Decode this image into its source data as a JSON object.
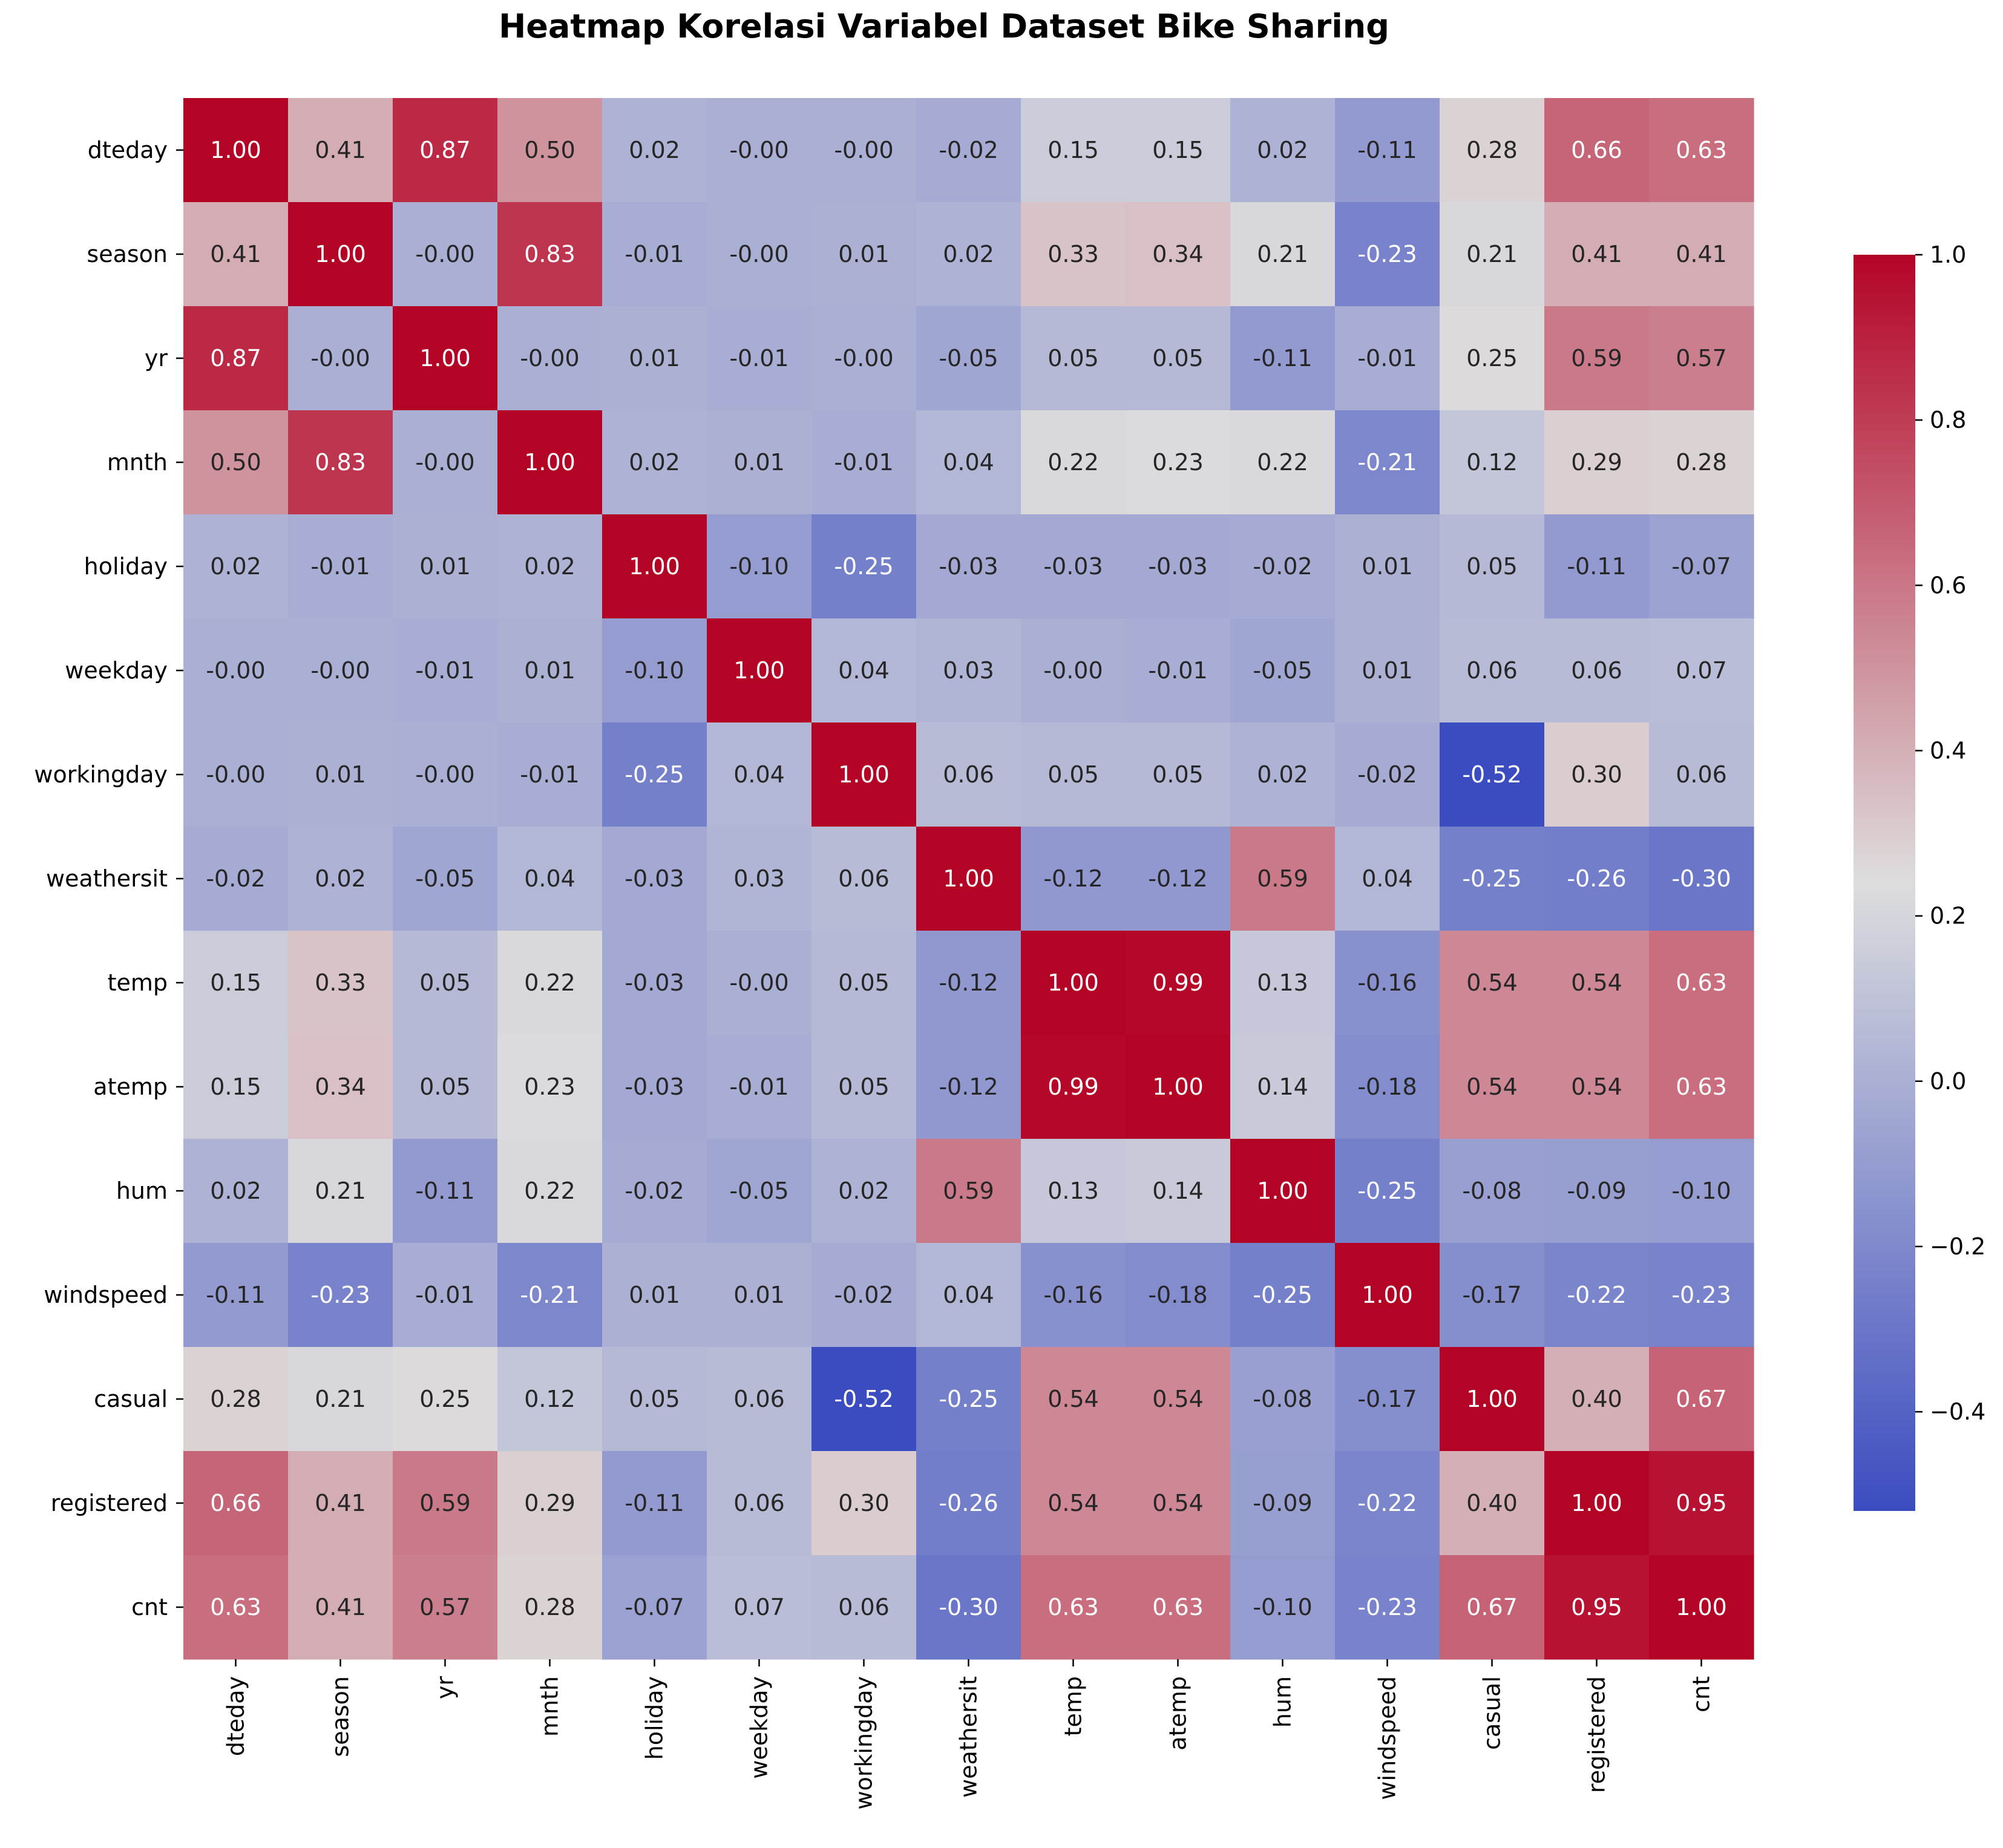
{
  "chart_data": {
    "type": "heatmap",
    "title": "Heatmap Korelasi Variabel Dataset Bike Sharing",
    "xlabel": "",
    "ylabel": "",
    "variables": [
      "dteday",
      "season",
      "yr",
      "mnth",
      "holiday",
      "weekday",
      "workingday",
      "weathersit",
      "temp",
      "atemp",
      "hum",
      "windspeed",
      "casual",
      "registered",
      "cnt"
    ],
    "values": [
      [
        1.0,
        0.41,
        0.87,
        0.5,
        0.02,
        -0.0,
        -0.0,
        -0.02,
        0.15,
        0.15,
        0.02,
        -0.11,
        0.28,
        0.66,
        0.63
      ],
      [
        0.41,
        1.0,
        -0.0,
        0.83,
        -0.01,
        -0.0,
        0.01,
        0.02,
        0.33,
        0.34,
        0.21,
        -0.23,
        0.21,
        0.41,
        0.41
      ],
      [
        0.87,
        -0.0,
        1.0,
        -0.0,
        0.01,
        -0.01,
        -0.0,
        -0.05,
        0.05,
        0.05,
        -0.11,
        -0.01,
        0.25,
        0.59,
        0.57
      ],
      [
        0.5,
        0.83,
        -0.0,
        1.0,
        0.02,
        0.01,
        -0.01,
        0.04,
        0.22,
        0.23,
        0.22,
        -0.21,
        0.12,
        0.29,
        0.28
      ],
      [
        0.02,
        -0.01,
        0.01,
        0.02,
        1.0,
        -0.1,
        -0.25,
        -0.03,
        -0.03,
        -0.03,
        -0.02,
        0.01,
        0.05,
        -0.11,
        -0.07
      ],
      [
        -0.0,
        -0.0,
        -0.01,
        0.01,
        -0.1,
        1.0,
        0.04,
        0.03,
        -0.0,
        -0.01,
        -0.05,
        0.01,
        0.06,
        0.06,
        0.07
      ],
      [
        -0.0,
        0.01,
        -0.0,
        -0.01,
        -0.25,
        0.04,
        1.0,
        0.06,
        0.05,
        0.05,
        0.02,
        -0.02,
        -0.52,
        0.3,
        0.06
      ],
      [
        -0.02,
        0.02,
        -0.05,
        0.04,
        -0.03,
        0.03,
        0.06,
        1.0,
        -0.12,
        -0.12,
        0.59,
        0.04,
        -0.25,
        -0.26,
        -0.3
      ],
      [
        0.15,
        0.33,
        0.05,
        0.22,
        -0.03,
        -0.0,
        0.05,
        -0.12,
        1.0,
        0.99,
        0.13,
        -0.16,
        0.54,
        0.54,
        0.63
      ],
      [
        0.15,
        0.34,
        0.05,
        0.23,
        -0.03,
        -0.01,
        0.05,
        -0.12,
        0.99,
        1.0,
        0.14,
        -0.18,
        0.54,
        0.54,
        0.63
      ],
      [
        0.02,
        0.21,
        -0.11,
        0.22,
        -0.02,
        -0.05,
        0.02,
        0.59,
        0.13,
        0.14,
        1.0,
        -0.25,
        -0.08,
        -0.09,
        -0.1
      ],
      [
        -0.11,
        -0.23,
        -0.01,
        -0.21,
        0.01,
        0.01,
        -0.02,
        0.04,
        -0.16,
        -0.18,
        -0.25,
        1.0,
        -0.17,
        -0.22,
        -0.23
      ],
      [
        0.28,
        0.21,
        0.25,
        0.12,
        0.05,
        0.06,
        -0.52,
        -0.25,
        0.54,
        0.54,
        -0.08,
        -0.17,
        1.0,
        0.4,
        0.67
      ],
      [
        0.66,
        0.41,
        0.59,
        0.29,
        -0.11,
        0.06,
        0.3,
        -0.26,
        0.54,
        0.54,
        -0.09,
        -0.22,
        0.4,
        1.0,
        0.95
      ],
      [
        0.63,
        0.41,
        0.57,
        0.28,
        -0.07,
        0.07,
        0.06,
        -0.3,
        0.63,
        0.63,
        -0.1,
        -0.23,
        0.67,
        0.95,
        1.0
      ]
    ],
    "value_format": "2 decimals",
    "colormap": "coolwarm",
    "colors": {
      "low": "#3b4cc0",
      "mid": "#dddddd",
      "high": "#b40426"
    },
    "vmin": -0.52,
    "vmax": 1.0,
    "colorbar": {
      "ticks": [
        -0.4,
        -0.2,
        0.0,
        0.2,
        0.4,
        0.6,
        0.8,
        1.0
      ],
      "tick_labels": [
        "−0.4",
        "−0.2",
        "0.0",
        "0.2",
        "0.4",
        "0.6",
        "0.8",
        "1.0"
      ],
      "position": "right"
    },
    "grid": false
  }
}
